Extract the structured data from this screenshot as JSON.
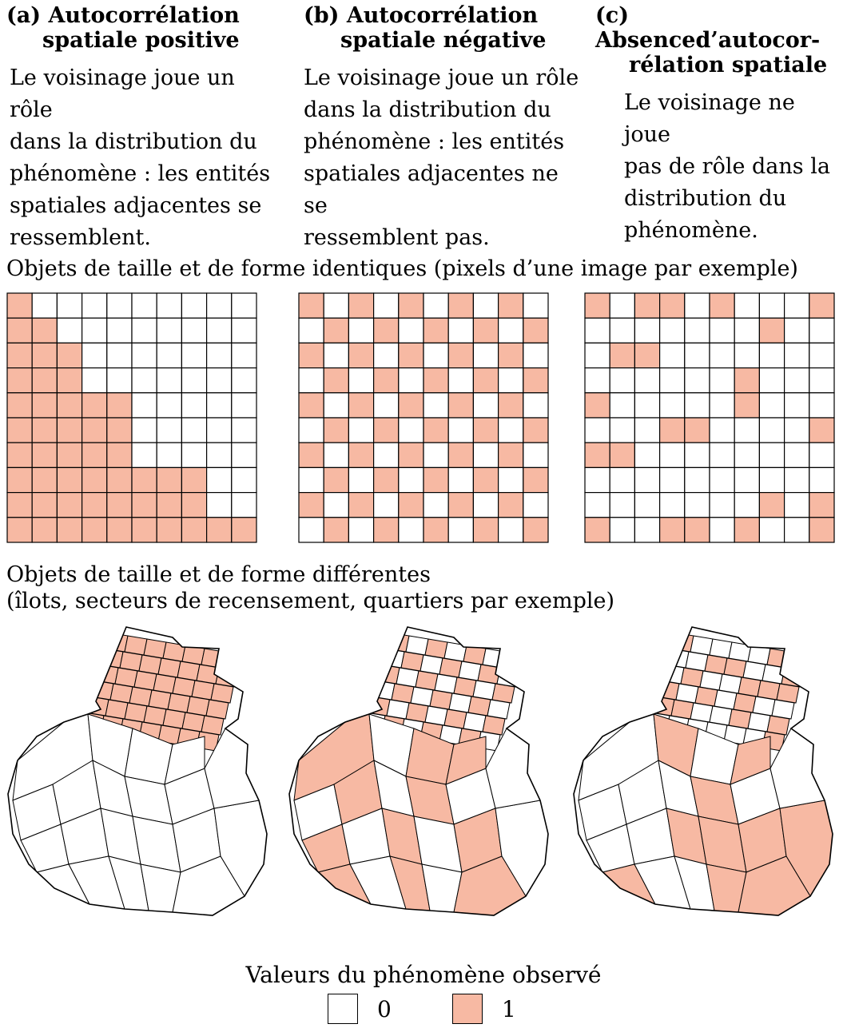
{
  "colors": {
    "positive": "#f7b9a3",
    "negative": "#ffffff",
    "line": "#000000"
  },
  "columns": [
    {
      "label": "(a)",
      "title_line1": "Autocorrélation",
      "title_line2": "spatiale positive",
      "desc": [
        "Le voisinage joue un rôle",
        "dans la distribution du",
        "phénomène : les entités",
        "spatiales adjacentes se",
        "ressemblent."
      ]
    },
    {
      "label": "(b)",
      "title_line1": "Autocorrélation",
      "title_line2": "spatiale négative",
      "desc": [
        "Le voisinage joue un rôle",
        "dans la distribution du",
        "phénomène : les entités",
        "spatiales adjacentes ne se",
        "ressemblent pas."
      ]
    },
    {
      "label": "(c)",
      "title_line1": "Absenced’autocor-",
      "title_line2": "rélation spatiale",
      "desc": [
        "Le voisinage ne joue",
        "pas de rôle dans la",
        "distribution du",
        "phénomène."
      ]
    }
  ],
  "section1": {
    "title": "Objets de taille et de forme identiques (pixels d’une image par exemple)"
  },
  "section2": {
    "title_line1": "Objets de taille et de forme différentes",
    "title_line2": "(îlots, secteurs de recensement, quartiers par exemple)"
  },
  "grids": [
    [
      "1000000000",
      "1100000000",
      "1110000000",
      "1110000000",
      "1111100000",
      "1111100000",
      "1111100000",
      "1111111100",
      "1111111100",
      "1111111111"
    ],
    [
      "1010101010",
      "0101010101",
      "1010101010",
      "0101010101",
      "1010101010",
      "0101010101",
      "1010101010",
      "0101010101",
      "1010101010",
      "0101010101"
    ],
    [
      "1011010001",
      "0000000100",
      "0110000000",
      "0000001000",
      "1000001000",
      "0001100001",
      "1100000000",
      "0000000000",
      "0000000101",
      "1001101001"
    ]
  ],
  "maps": [
    "positive",
    "negative",
    "random"
  ],
  "legend": {
    "title": "Valeurs du phénomène observé",
    "items": [
      {
        "value": "0",
        "color": "#ffffff"
      },
      {
        "value": "1",
        "color": "#f7b9a3"
      }
    ]
  }
}
